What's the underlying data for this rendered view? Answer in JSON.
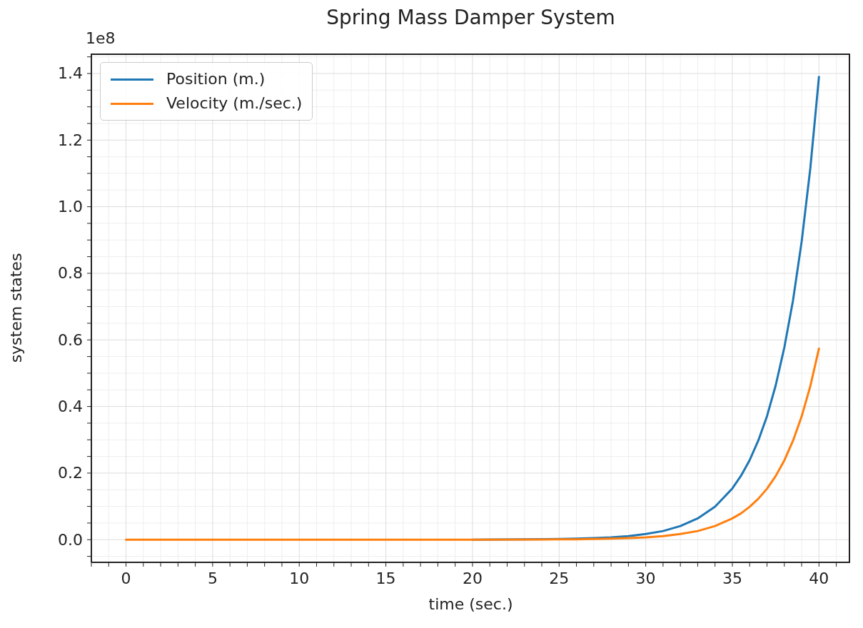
{
  "chart_data": {
    "type": "line",
    "title": "Spring Mass Damper System",
    "xlabel": "time (sec.)",
    "ylabel": "system states",
    "annotations": [
      "1e8"
    ],
    "x": [
      0,
      5,
      10,
      15,
      20,
      25,
      26,
      27,
      28,
      29,
      30,
      31,
      32,
      33,
      34,
      35,
      35.5,
      36,
      36.5,
      37,
      37.5,
      38,
      38.5,
      39,
      39.5,
      40
    ],
    "series": [
      {
        "name": "Position (m.)",
        "color": "#1f77b4",
        "values": [
          null,
          null,
          null,
          null,
          0,
          0.002,
          0.003,
          0.005,
          0.007,
          0.011,
          0.017,
          0.026,
          0.041,
          0.064,
          0.099,
          0.154,
          0.192,
          0.239,
          0.298,
          0.371,
          0.463,
          0.577,
          0.718,
          0.895,
          1.115,
          1.39
        ]
      },
      {
        "name": "Velocity (m./sec.)",
        "color": "#ff7f0e",
        "values": [
          0,
          0,
          0,
          0,
          0,
          0.001,
          0.001,
          0.002,
          0.003,
          0.005,
          0.007,
          0.011,
          0.017,
          0.026,
          0.041,
          0.064,
          0.079,
          0.099,
          0.123,
          0.153,
          0.191,
          0.238,
          0.297,
          0.37,
          0.461,
          0.574
        ]
      }
    ],
    "xlim": [
      -2,
      41.8
    ],
    "xticks": [
      {
        "value": -2,
        "label": null
      },
      {
        "value": -1,
        "label": null
      },
      0,
      {
        "value": 1,
        "label": null
      },
      {
        "value": 2,
        "label": null
      },
      {
        "value": 3,
        "label": null
      },
      {
        "value": 4,
        "label": null
      },
      5,
      {
        "value": 6,
        "label": null
      },
      {
        "value": 7,
        "label": null
      },
      {
        "value": 8,
        "label": null
      },
      {
        "value": 9,
        "label": null
      },
      10,
      {
        "value": 11,
        "label": null
      },
      {
        "value": 12,
        "label": null
      },
      {
        "value": 13,
        "label": null
      },
      {
        "value": 14,
        "label": null
      },
      15,
      {
        "value": 16,
        "label": null
      },
      {
        "value": 17,
        "label": null
      },
      {
        "value": 18,
        "label": null
      },
      {
        "value": 19,
        "label": null
      },
      20,
      {
        "value": 21,
        "label": null
      },
      {
        "value": 22,
        "label": null
      },
      {
        "value": 23,
        "label": null
      },
      {
        "value": 24,
        "label": null
      },
      25,
      {
        "value": 26,
        "label": null
      },
      {
        "value": 27,
        "label": null
      },
      {
        "value": 28,
        "label": null
      },
      {
        "value": 29,
        "label": null
      },
      30,
      {
        "value": 31,
        "label": null
      },
      {
        "value": 32,
        "label": null
      },
      {
        "value": 33,
        "label": null
      },
      {
        "value": 34,
        "label": null
      },
      35,
      {
        "value": 36,
        "label": null
      },
      {
        "value": 37,
        "label": null
      },
      {
        "value": 38,
        "label": null
      },
      {
        "value": 39,
        "label": null
      },
      40,
      {
        "value": 41,
        "label": null
      }
    ],
    "ylim": [
      -0.068,
      1.46
    ],
    "yticks": [
      {
        "value": -0.05,
        "label": null
      },
      {
        "value": 0,
        "label": "0.0"
      },
      {
        "value": 0.05,
        "label": null
      },
      {
        "value": 0.1,
        "label": null
      },
      {
        "value": 0.15,
        "label": null
      },
      {
        "value": 0.2,
        "label": "0.2"
      },
      {
        "value": 0.25,
        "label": null
      },
      {
        "value": 0.3,
        "label": null
      },
      {
        "value": 0.35,
        "label": null
      },
      {
        "value": 0.4,
        "label": "0.4"
      },
      {
        "value": 0.45,
        "label": null
      },
      {
        "value": 0.5,
        "label": null
      },
      {
        "value": 0.55,
        "label": null
      },
      {
        "value": 0.6,
        "label": "0.6"
      },
      {
        "value": 0.65,
        "label": null
      },
      {
        "value": 0.7,
        "label": null
      },
      {
        "value": 0.75,
        "label": null
      },
      {
        "value": 0.8,
        "label": "0.8"
      },
      {
        "value": 0.85,
        "label": null
      },
      {
        "value": 0.9,
        "label": null
      },
      {
        "value": 0.95,
        "label": null
      },
      {
        "value": 1,
        "label": "1.0"
      },
      {
        "value": 1.05,
        "label": null
      },
      {
        "value": 1.1,
        "label": null
      },
      {
        "value": 1.15,
        "label": null
      },
      {
        "value": 1.2,
        "label": "1.2"
      },
      {
        "value": 1.25,
        "label": null
      },
      {
        "value": 1.3,
        "label": null
      },
      {
        "value": 1.35,
        "label": null
      },
      {
        "value": 1.4,
        "label": "1.4"
      },
      {
        "value": 1.45,
        "label": null
      }
    ],
    "grid": true,
    "legend": "top left"
  }
}
